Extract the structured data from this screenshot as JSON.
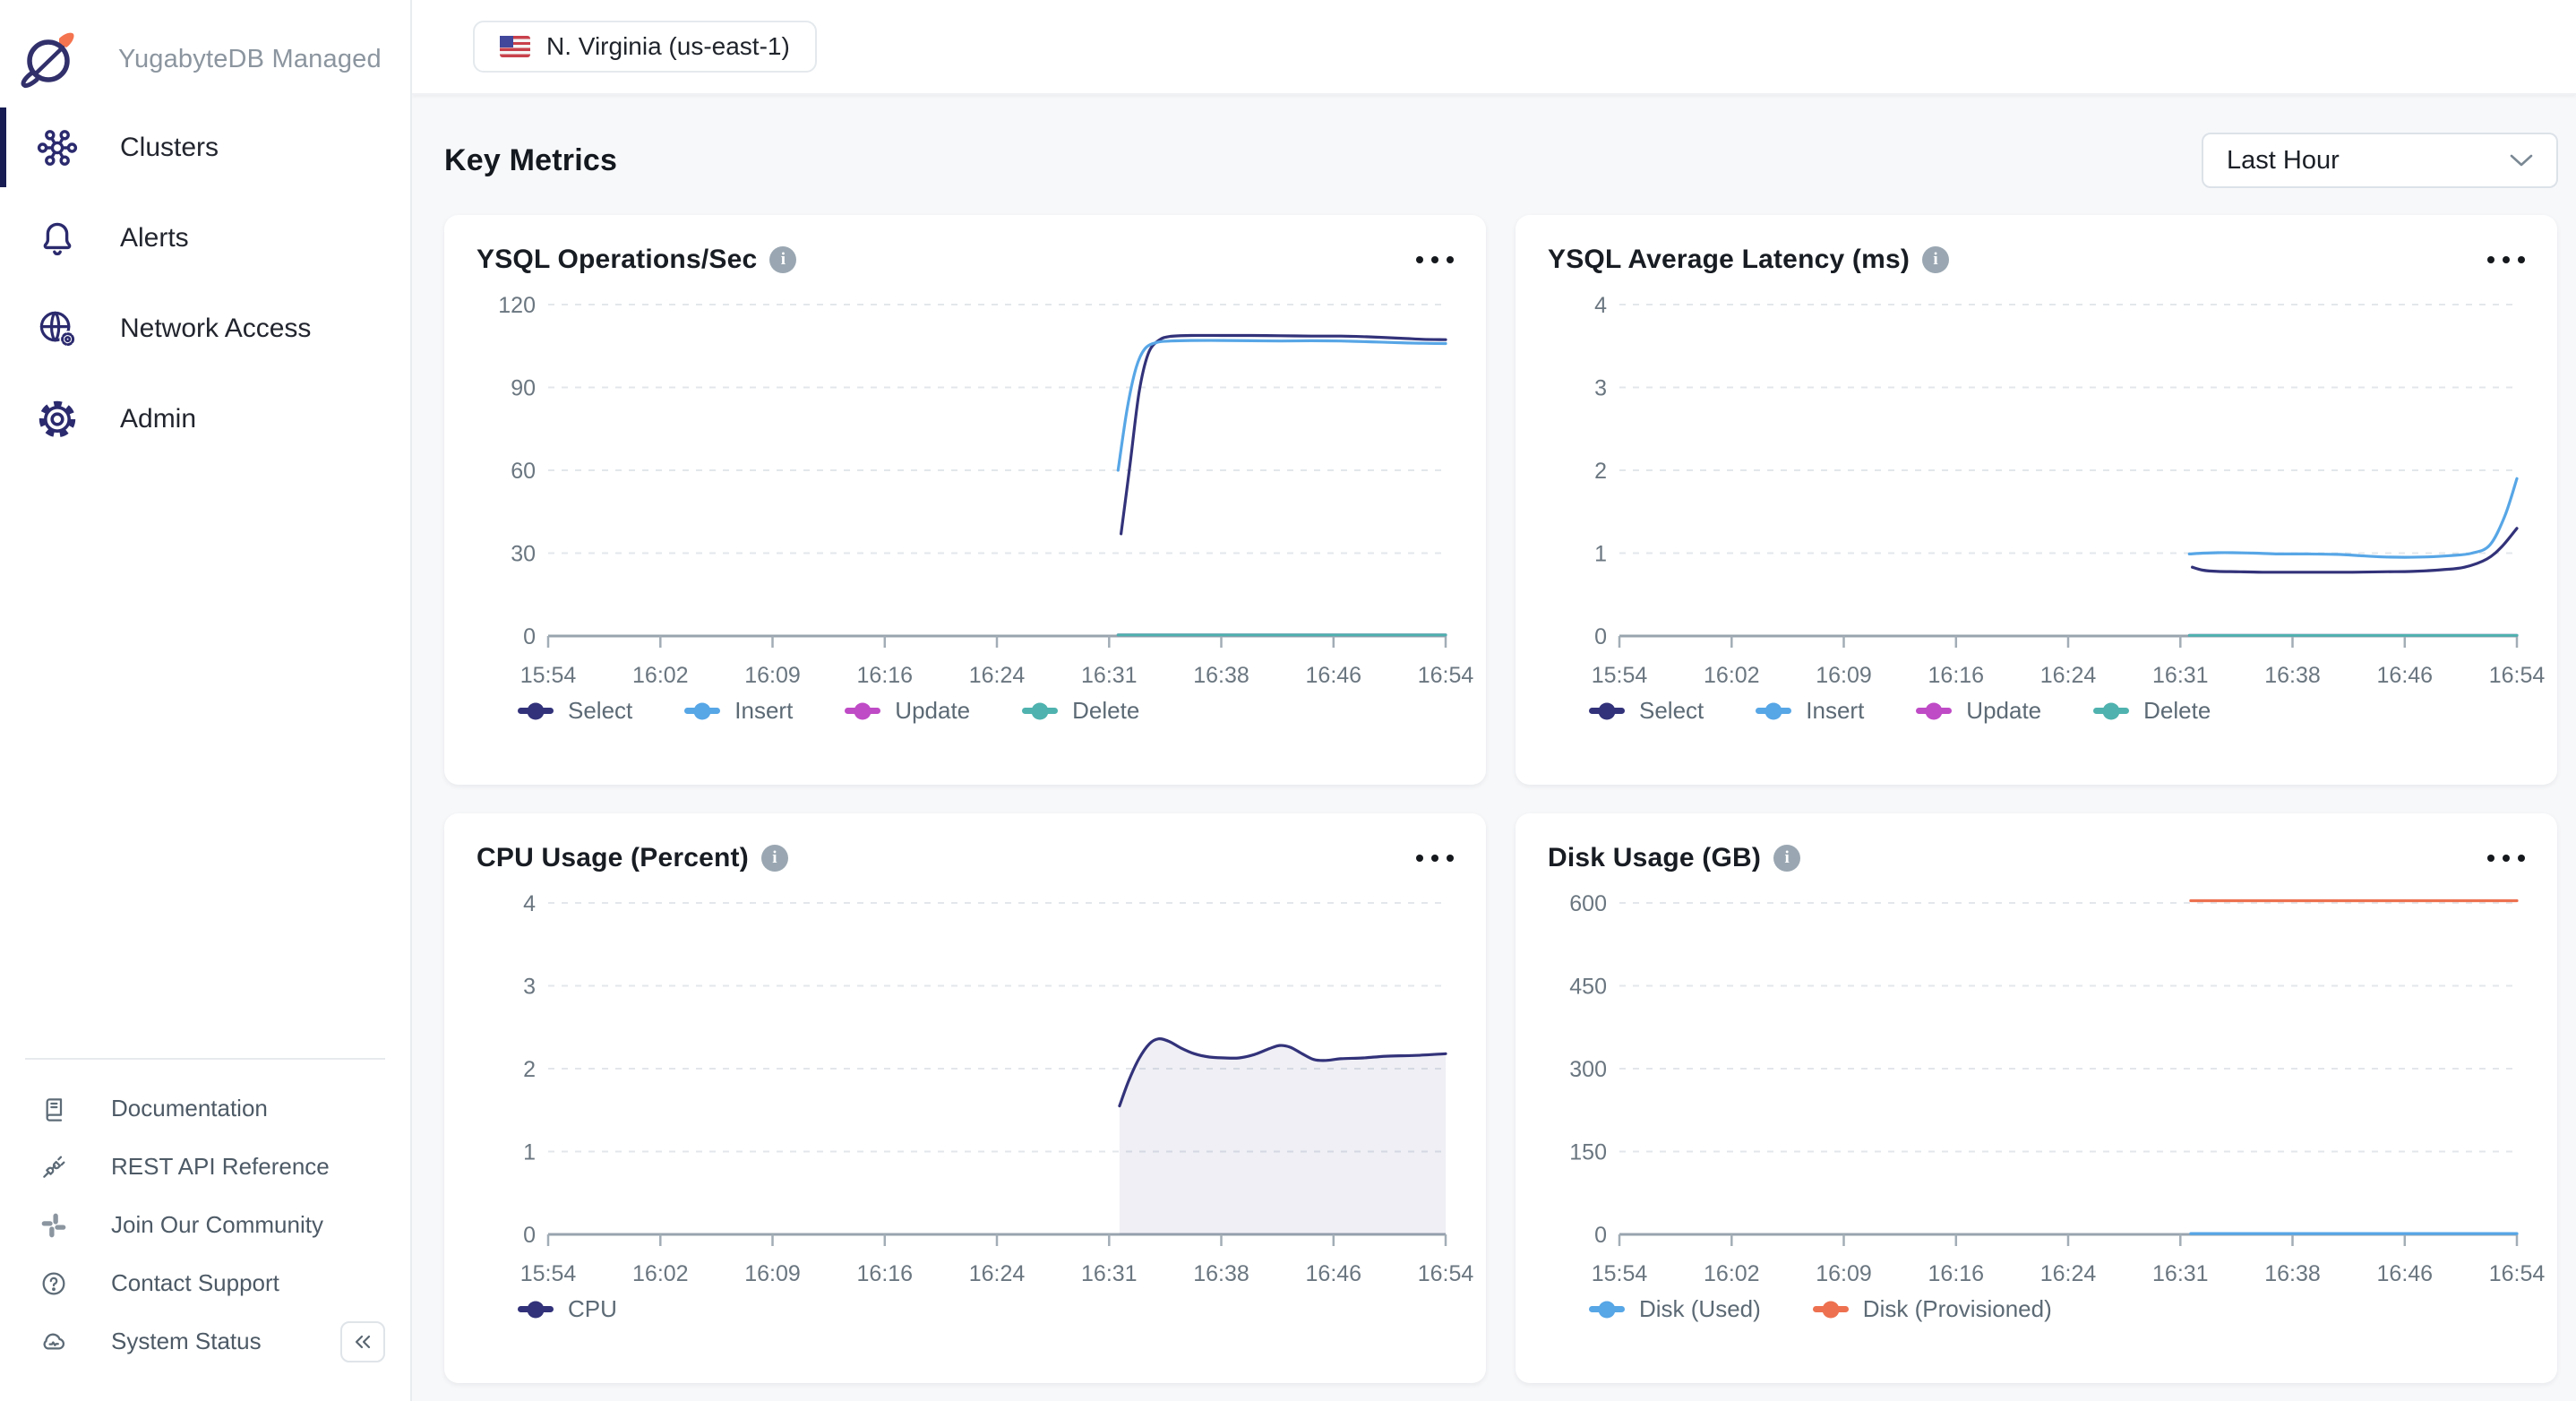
{
  "sidebar": {
    "logo_title": "YugabyteDB Managed",
    "items": [
      {
        "label": "Clusters",
        "icon": "clusters-icon",
        "active": true
      },
      {
        "label": "Alerts",
        "icon": "bell-icon",
        "active": false
      },
      {
        "label": "Network Access",
        "icon": "globe-gear-icon",
        "active": false
      },
      {
        "label": "Admin",
        "icon": "gear-icon",
        "active": false
      }
    ],
    "footer_items": [
      {
        "label": "Documentation",
        "icon": "book-icon"
      },
      {
        "label": "REST API Reference",
        "icon": "api-plug-icon"
      },
      {
        "label": "Join Our Community",
        "icon": "slack-icon"
      },
      {
        "label": "Contact Support",
        "icon": "help-circle-icon"
      },
      {
        "label": "System Status",
        "icon": "cloud-status-icon"
      }
    ]
  },
  "topbar": {
    "region_label": "N. Virginia (us-east-1)",
    "region_flag": "us-flag-icon"
  },
  "main": {
    "heading": "Key Metrics",
    "time_range": "Last Hour"
  },
  "colors": {
    "select_navy": "#32327A",
    "insert_blue": "#57A6E6",
    "update_magenta": "#BF4BC6",
    "delete_teal": "#4FB2AE",
    "disk_orange": "#ED7150",
    "sidebar_active": "#171C52",
    "logo_orange": "#F4744F"
  },
  "chart_data": [
    {
      "type": "line",
      "title": "YSQL Operations/Sec",
      "ylim": [
        0,
        120
      ],
      "yticks": [
        0,
        30,
        60,
        90,
        120
      ],
      "x_labels": [
        "15:54",
        "16:02",
        "16:09",
        "16:16",
        "16:24",
        "16:31",
        "16:38",
        "16:46",
        "16:54"
      ],
      "x_range_minutes": 60,
      "grid": true,
      "legend_position": "bottom",
      "series": [
        {
          "name": "Select",
          "color": "#32327A",
          "points": [
            [
              38.3,
              37
            ],
            [
              38.9,
              62
            ],
            [
              39.5,
              88
            ],
            [
              40.1,
              102
            ],
            [
              40.8,
              107
            ],
            [
              41.6,
              108.5
            ],
            [
              43,
              108.8
            ],
            [
              45,
              108.8
            ],
            [
              47,
              108.8
            ],
            [
              49,
              108.7
            ],
            [
              51,
              108.6
            ],
            [
              53,
              108.6
            ],
            [
              55,
              108.3
            ],
            [
              57,
              107.8
            ],
            [
              58.5,
              107.4
            ],
            [
              60,
              107.3
            ]
          ]
        },
        {
          "name": "Insert",
          "color": "#57A6E6",
          "points": [
            [
              38.1,
              60
            ],
            [
              38.7,
              82
            ],
            [
              39.3,
              97
            ],
            [
              39.9,
              104
            ],
            [
              40.7,
              106.3
            ],
            [
              41.6,
              106.8
            ],
            [
              43,
              107
            ],
            [
              45,
              107
            ],
            [
              47,
              106.9
            ],
            [
              49,
              106.8
            ],
            [
              51,
              106.9
            ],
            [
              53,
              106.8
            ],
            [
              55,
              106.5
            ],
            [
              57,
              106.2
            ],
            [
              58.5,
              106
            ],
            [
              60,
              105.9
            ]
          ]
        },
        {
          "name": "Update",
          "color": "#BF4BC6",
          "points": [
            [
              38.1,
              0.4
            ],
            [
              60,
              0.4
            ]
          ]
        },
        {
          "name": "Delete",
          "color": "#4FB2AE",
          "points": [
            [
              38.1,
              0.4
            ],
            [
              60,
              0.4
            ]
          ]
        }
      ]
    },
    {
      "type": "line",
      "title": "YSQL Average Latency (ms)",
      "ylim": [
        0,
        4
      ],
      "yticks": [
        0,
        1,
        2,
        3,
        4
      ],
      "x_labels": [
        "15:54",
        "16:02",
        "16:09",
        "16:16",
        "16:24",
        "16:31",
        "16:38",
        "16:46",
        "16:54"
      ],
      "x_range_minutes": 60,
      "grid": true,
      "legend_position": "bottom",
      "series": [
        {
          "name": "Select",
          "color": "#32327A",
          "points": [
            [
              38.3,
              0.83
            ],
            [
              39,
              0.795
            ],
            [
              40,
              0.78
            ],
            [
              41.5,
              0.775
            ],
            [
              43,
              0.77
            ],
            [
              45,
              0.77
            ],
            [
              47,
              0.77
            ],
            [
              49,
              0.77
            ],
            [
              51,
              0.775
            ],
            [
              53,
              0.78
            ],
            [
              55,
              0.8
            ],
            [
              56.5,
              0.83
            ],
            [
              58,
              0.93
            ],
            [
              59,
              1.08
            ],
            [
              60,
              1.3
            ]
          ]
        },
        {
          "name": "Insert",
          "color": "#57A6E6",
          "points": [
            [
              38.1,
              0.99
            ],
            [
              39,
              1.0
            ],
            [
              40,
              1.005
            ],
            [
              41,
              1.005
            ],
            [
              42.5,
              1.0
            ],
            [
              44,
              0.99
            ],
            [
              46,
              0.99
            ],
            [
              48,
              0.985
            ],
            [
              49.5,
              0.97
            ],
            [
              51,
              0.955
            ],
            [
              52.5,
              0.95
            ],
            [
              54,
              0.955
            ],
            [
              55.5,
              0.97
            ],
            [
              57,
              1.0
            ],
            [
              58.2,
              1.1
            ],
            [
              59.2,
              1.45
            ],
            [
              60,
              1.9
            ]
          ]
        },
        {
          "name": "Update",
          "color": "#BF4BC6",
          "points": [
            [
              38.1,
              0.008
            ],
            [
              60,
              0.008
            ]
          ]
        },
        {
          "name": "Delete",
          "color": "#4FB2AE",
          "points": [
            [
              38.1,
              0.008
            ],
            [
              60,
              0.008
            ]
          ]
        }
      ]
    },
    {
      "type": "area",
      "title": "CPU Usage (Percent)",
      "ylim": [
        0,
        4
      ],
      "yticks": [
        0,
        1,
        2,
        3,
        4
      ],
      "x_labels": [
        "15:54",
        "16:02",
        "16:09",
        "16:16",
        "16:24",
        "16:31",
        "16:38",
        "16:46",
        "16:54"
      ],
      "x_range_minutes": 60,
      "grid": true,
      "legend_position": "bottom",
      "series": [
        {
          "name": "CPU",
          "color": "#32327A",
          "fill": "rgba(50,50,122,0.08)",
          "points": [
            [
              38.2,
              1.55
            ],
            [
              38.8,
              1.85
            ],
            [
              39.5,
              2.12
            ],
            [
              40.2,
              2.3
            ],
            [
              40.8,
              2.36
            ],
            [
              41.5,
              2.33
            ],
            [
              42.3,
              2.25
            ],
            [
              43.2,
              2.18
            ],
            [
              44.2,
              2.14
            ],
            [
              45.2,
              2.13
            ],
            [
              46.2,
              2.13
            ],
            [
              47.2,
              2.17
            ],
            [
              48.2,
              2.24
            ],
            [
              48.9,
              2.28
            ],
            [
              49.6,
              2.26
            ],
            [
              50.4,
              2.18
            ],
            [
              51.2,
              2.11
            ],
            [
              52,
              2.1
            ],
            [
              53,
              2.12
            ],
            [
              54.5,
              2.13
            ],
            [
              56,
              2.15
            ],
            [
              58,
              2.16
            ],
            [
              60,
              2.18
            ]
          ]
        }
      ]
    },
    {
      "type": "line",
      "title": "Disk Usage (GB)",
      "ylim": [
        0,
        600
      ],
      "yticks": [
        0,
        150,
        300,
        450,
        600
      ],
      "x_labels": [
        "15:54",
        "16:02",
        "16:09",
        "16:16",
        "16:24",
        "16:31",
        "16:38",
        "16:46",
        "16:54"
      ],
      "x_range_minutes": 60,
      "grid": true,
      "legend_position": "bottom",
      "series": [
        {
          "name": "Disk (Used)",
          "color": "#57A6E6",
          "points": [
            [
              38.2,
              1.5
            ],
            [
              60,
              1.5
            ]
          ]
        },
        {
          "name": "Disk (Provisioned)",
          "color": "#ED7150",
          "points": [
            [
              38.2,
              604
            ],
            [
              60,
              604
            ]
          ]
        }
      ]
    }
  ]
}
